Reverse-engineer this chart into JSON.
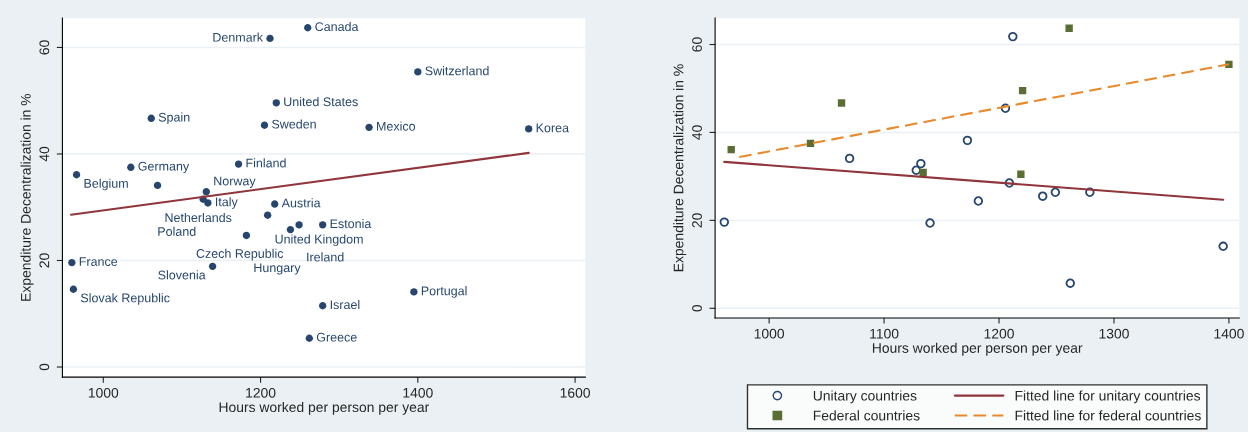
{
  "chart_data": [
    {
      "type": "scatter",
      "xlabel": "Hours worked per person per year",
      "ylabel": "Expenditure Decentralization in %",
      "xlim": [
        948,
        1613
      ],
      "ylim": [
        -1.9,
        65.5
      ],
      "xticks": [
        1000,
        1200,
        1400,
        1600
      ],
      "yticks": [
        0,
        20,
        40,
        60
      ],
      "grid": "y",
      "legend": false,
      "series": [
        {
          "type": "scatter",
          "marker": "circle",
          "color": "#26466d",
          "x": [
            1260,
            1212,
            1400,
            1220,
            1061,
            1205,
            1338,
            1541,
            1172,
            966,
            1035,
            1069,
            1131,
            1127,
            1133,
            1218,
            1209,
            1249,
            1279,
            1238,
            1182,
            960,
            1139,
            962,
            1395,
            1279,
            1262
          ],
          "values": [
            63.7,
            61.7,
            55.4,
            49.6,
            46.7,
            45.4,
            45.0,
            44.7,
            38.1,
            36.1,
            37.5,
            34.1,
            32.9,
            31.5,
            30.8,
            30.6,
            28.5,
            26.7,
            26.7,
            25.8,
            24.7,
            19.6,
            18.9,
            14.6,
            14.1,
            11.5,
            5.4
          ]
        },
        {
          "type": "line",
          "color": "#90353b",
          "line_style": "solid",
          "x": [
            959,
            1541
          ],
          "values": [
            28.6,
            40.2
          ]
        }
      ],
      "annotations": [
        {
          "text": "Canada",
          "x": 1260,
          "y": 63.7
        },
        {
          "text": "Denmark",
          "x": 1212,
          "y": 61.7
        },
        {
          "text": "Switzerland",
          "x": 1400,
          "y": 55.4
        },
        {
          "text": "United States",
          "x": 1220,
          "y": 49.6
        },
        {
          "text": "Spain",
          "x": 1061,
          "y": 46.7
        },
        {
          "text": "Sweden",
          "x": 1205,
          "y": 45.4
        },
        {
          "text": "Mexico",
          "x": 1338,
          "y": 45.0
        },
        {
          "text": "Korea",
          "x": 1541,
          "y": 44.7
        },
        {
          "text": "Finland",
          "x": 1172,
          "y": 38.1
        },
        {
          "text": "Belgium",
          "x": 966,
          "y": 36.1
        },
        {
          "text": "Germany",
          "x": 1035,
          "y": 37.5
        },
        {
          "text": "Netherlands",
          "x": 1069,
          "y": 34.1
        },
        {
          "text": "Norway",
          "x": 1131,
          "y": 32.9
        },
        {
          "text": "Poland",
          "x": 1127,
          "y": 31.5
        },
        {
          "text": "Italy",
          "x": 1133,
          "y": 30.8
        },
        {
          "text": "Austria",
          "x": 1218,
          "y": 30.6
        },
        {
          "text": "United Kingdom",
          "x": 1209,
          "y": 28.5
        },
        {
          "text": "Ireland",
          "x": 1249,
          "y": 26.7
        },
        {
          "text": "Estonia",
          "x": 1279,
          "y": 26.7
        },
        {
          "text": "Czech Republic",
          "x": 1238,
          "y": 25.8
        },
        {
          "text": "Hungary",
          "x": 1182,
          "y": 24.7
        },
        {
          "text": "France",
          "x": 960,
          "y": 19.6
        },
        {
          "text": "Slovenia",
          "x": 1139,
          "y": 18.9
        },
        {
          "text": "Slovak Republic",
          "x": 962,
          "y": 14.6
        },
        {
          "text": "Portugal",
          "x": 1395,
          "y": 14.1
        },
        {
          "text": "Israel",
          "x": 1279,
          "y": 11.5
        },
        {
          "text": "Greece",
          "x": 1262,
          "y": 5.4
        }
      ]
    },
    {
      "type": "scatter",
      "xlabel": "Hours worked per person per year",
      "ylabel": "Expenditure Decentralization in %",
      "xlim": [
        953,
        1409
      ],
      "ylim": [
        -2.2,
        66
      ],
      "xticks": [
        1000,
        1100,
        1200,
        1300,
        1400
      ],
      "yticks": [
        0,
        20,
        40,
        60
      ],
      "grid": "y",
      "legend": "bottom",
      "series": [
        {
          "name": "Unitary countries",
          "type": "scatter",
          "marker": "circle",
          "color": "#26466d",
          "x": [
            1212,
            1205.6,
            1172.5,
            1070,
            1132,
            1128,
            1209,
            1182,
            1238,
            1249,
            1279,
            961,
            1140,
            1262,
            1395
          ],
          "values": [
            61.8,
            45.5,
            38.2,
            34.1,
            32.9,
            31.4,
            28.5,
            24.4,
            25.5,
            26.4,
            26.4,
            19.6,
            19.4,
            5.7,
            14.1
          ]
        },
        {
          "name": "Federal countries",
          "type": "scatter",
          "marker": "square",
          "color": "#5a6e34",
          "x": [
            967,
            1036,
            1063,
            1134,
            1261,
            1220.5,
            1219,
            1400
          ],
          "values": [
            36.1,
            37.5,
            46.7,
            30.9,
            63.7,
            49.5,
            30.5,
            55.5
          ]
        },
        {
          "name": "Fitted line for unitary countries",
          "type": "line",
          "line_style": "solid",
          "color": "#90353b",
          "x": [
            961,
            1395
          ],
          "values": [
            33.3,
            24.7
          ]
        },
        {
          "name": "Fitted line for federal countries",
          "type": "line",
          "line_style": "dashed",
          "color": "#e8892b",
          "x": [
            974,
            1400
          ],
          "values": [
            34.4,
            55.5
          ]
        }
      ]
    }
  ]
}
